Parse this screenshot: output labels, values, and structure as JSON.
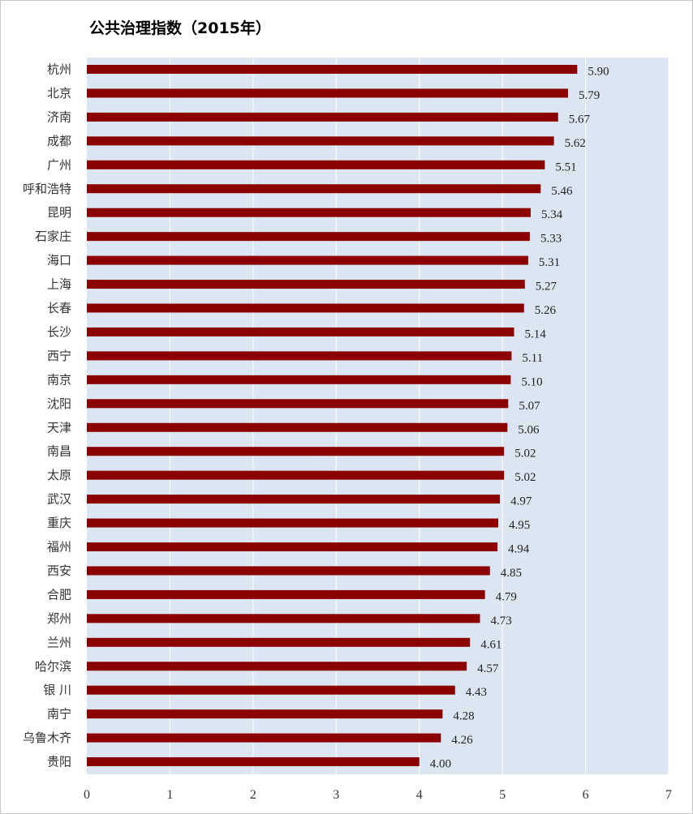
{
  "chart_data": {
    "type": "bar",
    "orientation": "horizontal",
    "title": "公共治理指数（2015年）",
    "categories": [
      "杭州",
      "北京",
      "济南",
      "成都",
      "广州",
      "呼和浩特",
      "昆明",
      "石家庄",
      "海口",
      "上海",
      "长春",
      "长沙",
      "西宁",
      "南京",
      "沈阳",
      "天津",
      "南昌",
      "太原",
      "武汉",
      "重庆",
      "福州",
      "西安",
      "合肥",
      "郑州",
      "兰州",
      "哈尔滨",
      "银 川",
      "南宁",
      "乌鲁木齐",
      "贵阳"
    ],
    "values": [
      5.9,
      5.79,
      5.67,
      5.62,
      5.51,
      5.46,
      5.34,
      5.33,
      5.31,
      5.27,
      5.26,
      5.14,
      5.11,
      5.1,
      5.07,
      5.06,
      5.02,
      5.02,
      4.97,
      4.95,
      4.94,
      4.85,
      4.79,
      4.73,
      4.61,
      4.57,
      4.43,
      4.28,
      4.26,
      4.0
    ],
    "value_labels": [
      "5.90",
      "5.79",
      "5.67",
      "5.62",
      "5.51",
      "5.46",
      "5.34",
      "5.33",
      "5.31",
      "5.27",
      "5.26",
      "5.14",
      "5.11",
      "5.10",
      "5.07",
      "5.06",
      "5.02",
      "5.02",
      "4.97",
      "4.95",
      "4.94",
      "4.85",
      "4.79",
      "4.73",
      "4.61",
      "4.57",
      "4.43",
      "4.28",
      "4.26",
      "4.00"
    ],
    "xlim": [
      0,
      7
    ],
    "xticks": [
      "0",
      "1",
      "2",
      "3",
      "4",
      "5",
      "6",
      "7"
    ],
    "grid": "vertical",
    "legend": "none",
    "colors": {
      "bar": "#8b0000",
      "plot_background": "#dce6f2",
      "gridline": "#ffffff"
    }
  }
}
